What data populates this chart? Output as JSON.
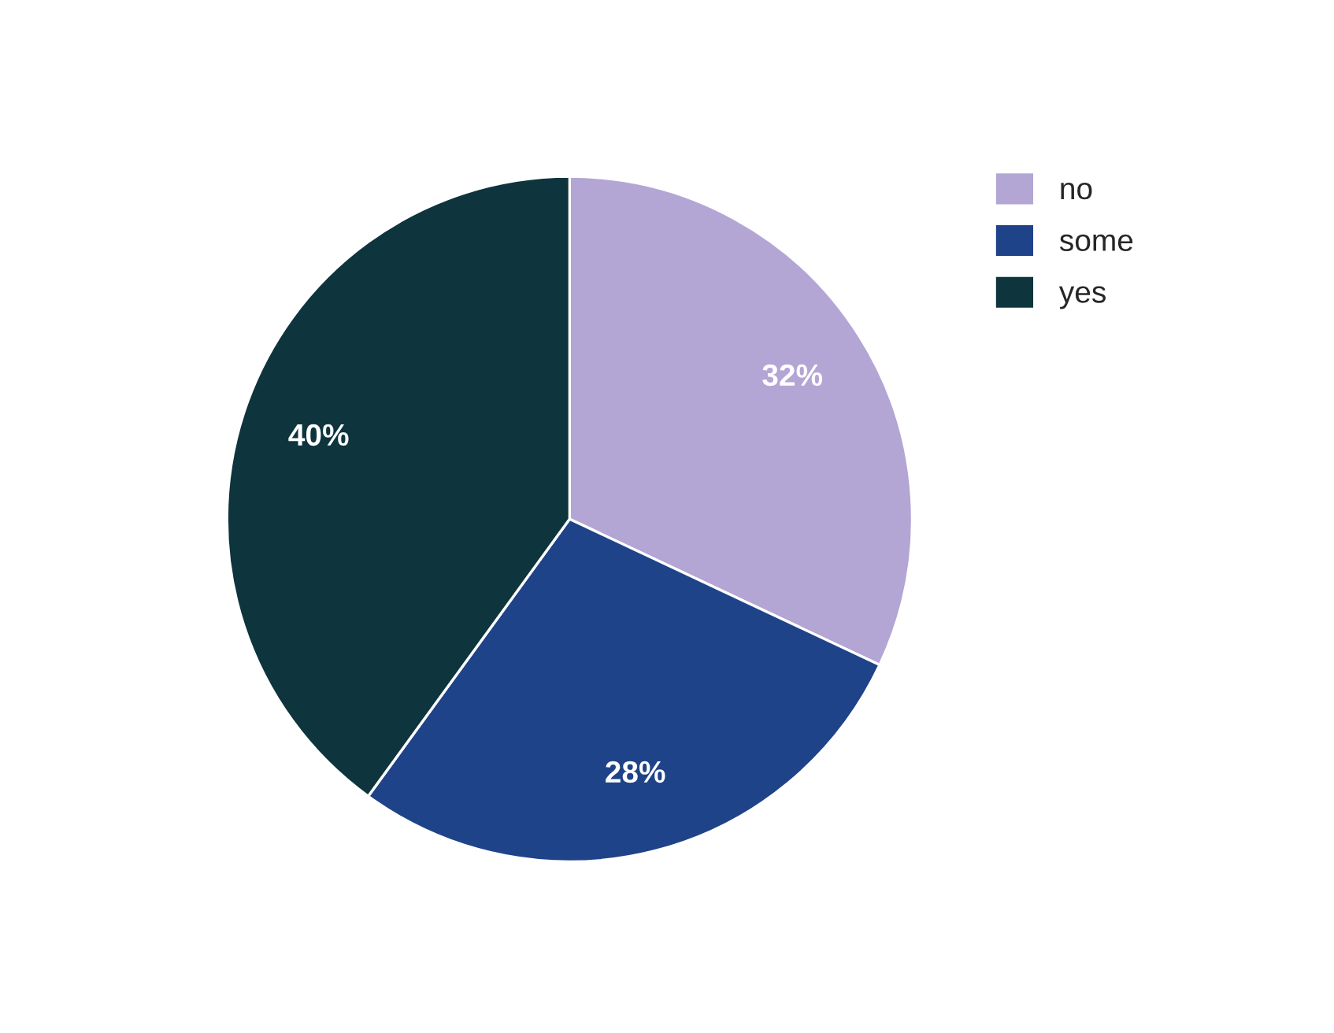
{
  "chart_data": {
    "type": "pie",
    "categories": [
      "no",
      "some",
      "yes"
    ],
    "values": [
      32,
      28,
      40
    ],
    "colors": [
      "#b3a6d5",
      "#1f4388",
      "#0e343d"
    ],
    "value_labels": [
      "32%",
      "28%",
      "40%"
    ],
    "legend": "top right"
  }
}
